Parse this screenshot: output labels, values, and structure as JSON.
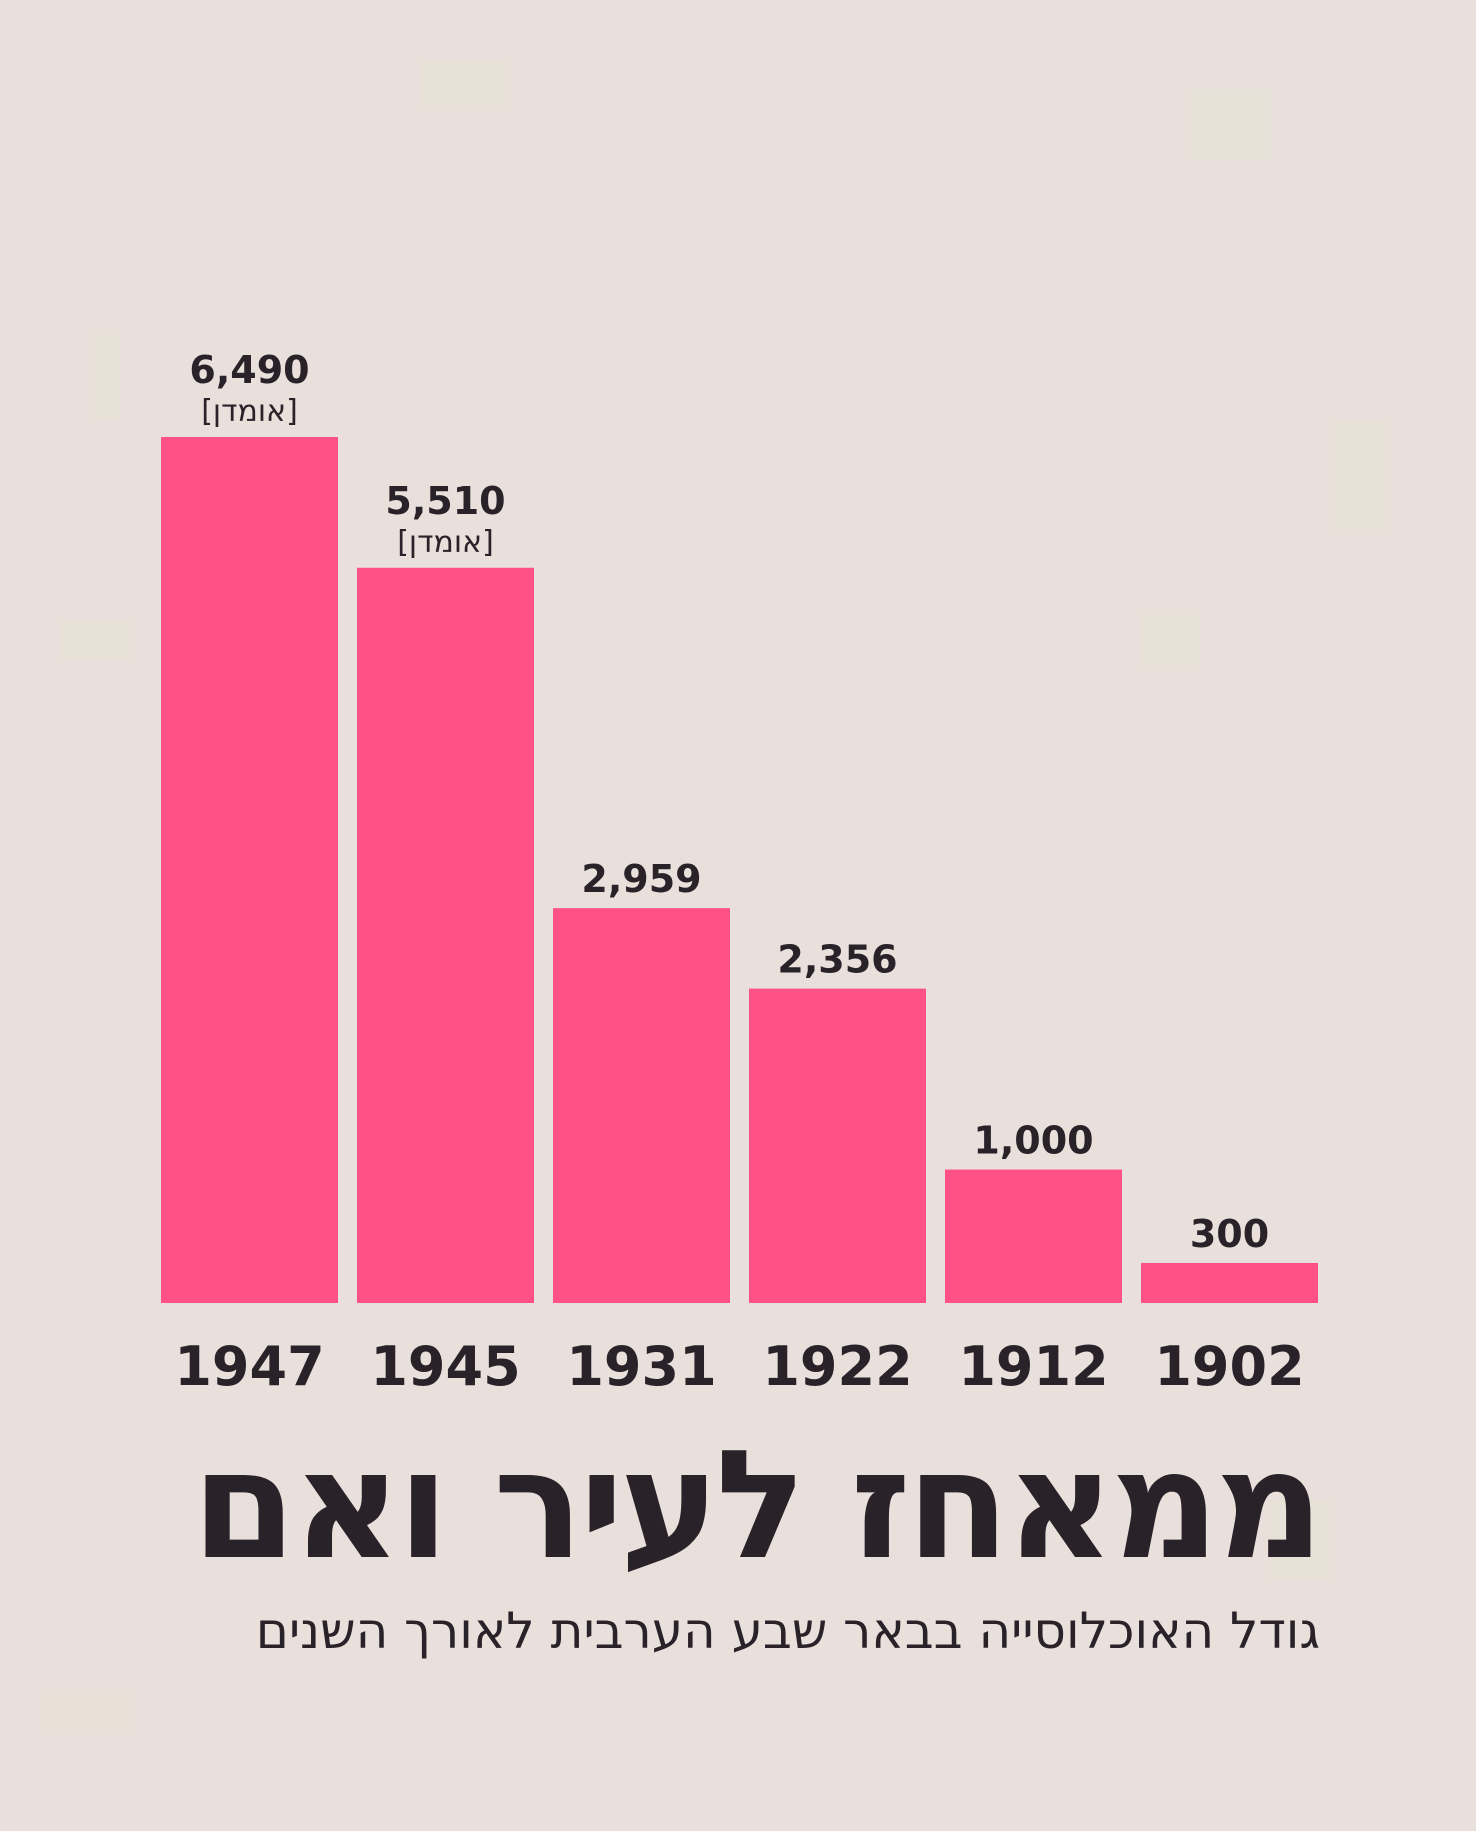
{
  "colors": {
    "background": "#e9dfdb",
    "bar": "#ff5183",
    "text": "#2a2229"
  },
  "header": {
    "title": "ממאחז לעיר ואם",
    "subtitle": "גודל האוכלוסייה בבאר שבע הערבית לאורך השנים"
  },
  "chart_data": {
    "type": "bar",
    "categories": [
      "1947",
      "1945",
      "1931",
      "1922",
      "1912",
      "1902"
    ],
    "values": [
      6490,
      5510,
      2959,
      2356,
      1000,
      300
    ],
    "data_labels": [
      "6,490",
      "5,510",
      "2,959",
      "2,356",
      "1,000",
      "300"
    ],
    "notes": [
      "[אומדן]",
      "[אומדן]",
      "",
      "",
      "",
      ""
    ],
    "ylim": [
      0,
      6490
    ],
    "grid": false,
    "legend": "none"
  }
}
